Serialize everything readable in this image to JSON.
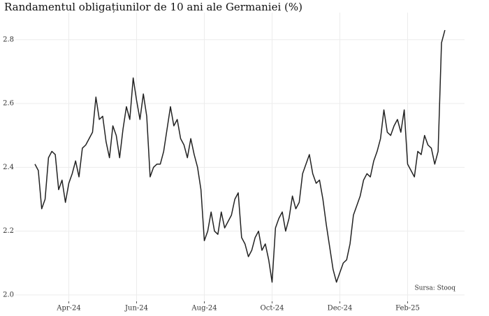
{
  "chart_data": {
    "type": "line",
    "title": "Randamentul obligațiunilor de 10 ani ale Germaniei (%)",
    "annotation": "Sursa: Stooq",
    "categories": [
      null,
      null,
      null,
      null,
      null,
      null,
      null,
      null,
      null,
      null,
      "Apr-24",
      null,
      null,
      null,
      null,
      null,
      null,
      null,
      null,
      null,
      null,
      null,
      null,
      null,
      null,
      null,
      null,
      null,
      null,
      null,
      "Jun-24",
      null,
      null,
      null,
      null,
      null,
      null,
      null,
      null,
      null,
      null,
      null,
      null,
      null,
      null,
      null,
      null,
      null,
      null,
      null,
      "Aug-24",
      null,
      null,
      null,
      null,
      null,
      null,
      null,
      null,
      null,
      null,
      null,
      null,
      null,
      null,
      null,
      null,
      null,
      null,
      null,
      "Oct-24",
      null,
      null,
      null,
      null,
      null,
      null,
      null,
      null,
      null,
      null,
      null,
      null,
      null,
      null,
      null,
      null,
      null,
      null,
      null,
      "Dec-24",
      null,
      null,
      null,
      null,
      null,
      null,
      null,
      null,
      null,
      null,
      null,
      null,
      null,
      null,
      null,
      null,
      null,
      null,
      null,
      "Feb-25",
      null,
      null,
      null,
      null,
      null,
      null,
      null,
      null,
      null,
      null,
      null
    ],
    "series": [
      {
        "color": "#222222",
        "values": [
          2.41,
          2.39,
          2.27,
          2.3,
          2.43,
          2.45,
          2.44,
          2.33,
          2.36,
          2.29,
          2.35,
          2.38,
          2.42,
          2.37,
          2.46,
          2.47,
          2.49,
          2.51,
          2.62,
          2.55,
          2.56,
          2.48,
          2.43,
          2.53,
          2.5,
          2.43,
          2.52,
          2.59,
          2.55,
          2.68,
          2.61,
          2.55,
          2.63,
          2.56,
          2.37,
          2.4,
          2.41,
          2.41,
          2.45,
          2.52,
          2.59,
          2.53,
          2.55,
          2.49,
          2.47,
          2.43,
          2.49,
          2.44,
          2.4,
          2.33,
          2.17,
          2.2,
          2.26,
          2.2,
          2.19,
          2.26,
          2.21,
          2.23,
          2.25,
          2.3,
          2.32,
          2.18,
          2.16,
          2.12,
          2.14,
          2.18,
          2.2,
          2.14,
          2.16,
          2.11,
          2.04,
          2.21,
          2.24,
          2.26,
          2.2,
          2.24,
          2.31,
          2.27,
          2.29,
          2.38,
          2.41,
          2.44,
          2.38,
          2.35,
          2.36,
          2.3,
          2.22,
          2.15,
          2.08,
          2.04,
          2.07,
          2.1,
          2.11,
          2.16,
          2.25,
          2.28,
          2.31,
          2.36,
          2.38,
          2.37,
          2.42,
          2.45,
          2.49,
          2.58,
          2.51,
          2.5,
          2.53,
          2.55,
          2.51,
          2.58,
          2.41,
          2.39,
          2.37,
          2.45,
          2.44,
          2.5,
          2.47,
          2.46,
          2.41,
          2.45,
          2.79,
          2.83
        ]
      }
    ],
    "ylim": [
      1.98,
      2.885
    ],
    "yticks": [
      {
        "value": 2,
        "label": "2.0"
      },
      2.2,
      2.4,
      2.6,
      2.8
    ],
    "grid": true
  }
}
